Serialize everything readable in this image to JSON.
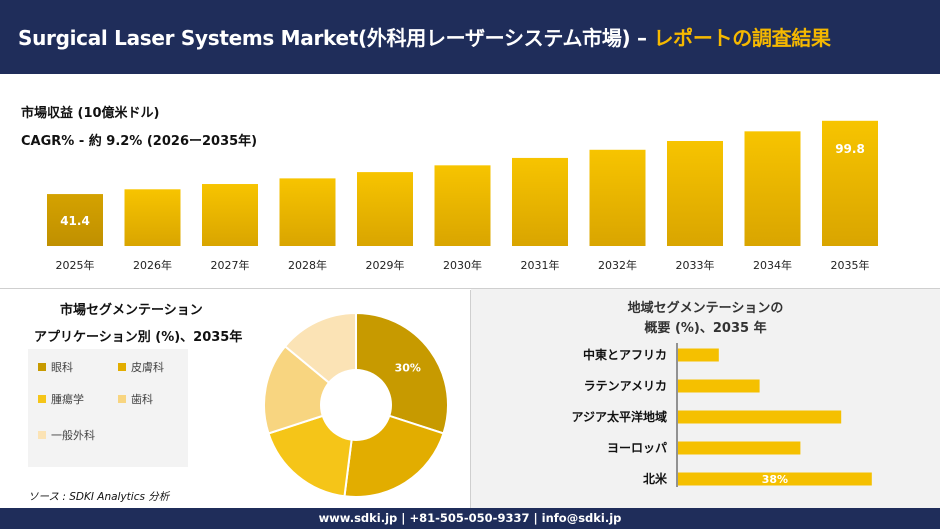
{
  "header": {
    "title_main": "Surgical Laser Systems Market(外科用レーザーシステム市場) –",
    "title_accent": "レポートの調査結果"
  },
  "top": {
    "label_revenue": "市場収益 (10億米ドル)",
    "label_cagr": "CAGR% - 約 9.2% (2026ー2035年)"
  },
  "segmentation": {
    "title_line1": "市場セグメンテーション",
    "title_line2": "アプリケーション別 (%)、2035年"
  },
  "region": {
    "title_line1": "地域セグメンテーションの",
    "title_line2": "概要 (%)、2035 年"
  },
  "source": "ソース : SDKI Analytics 分析",
  "footer": "www.sdki.jp | +81-505-050-9337 | info@sdki.jp",
  "colors": {
    "header_bg": "#1f2d5a",
    "accent": "#f5b800",
    "bar_gold": "#f5c000",
    "bar_dark": "#d4a000"
  },
  "chart_data": [
    {
      "type": "bar",
      "categories": [
        "2025年",
        "2026年",
        "2027年",
        "2028年",
        "2029年",
        "2030年",
        "2031年",
        "2032年",
        "2033年",
        "2034年",
        "2035年"
      ],
      "values": [
        41.4,
        45.2,
        49.4,
        53.9,
        58.9,
        64.3,
        70.2,
        76.7,
        83.7,
        91.4,
        99.8
      ],
      "data_labels": {
        "0": "41.4",
        "10": "99.8"
      },
      "ylim": [
        0,
        110
      ]
    },
    {
      "type": "pie",
      "categories": [
        "眼科",
        "皮膚科",
        "腫瘍学",
        "歯科",
        "一般外科"
      ],
      "values": [
        30,
        22,
        18,
        16,
        14
      ],
      "colors": [
        "#c79a00",
        "#e2ad00",
        "#f5c518",
        "#f8d580",
        "#fbe3b5"
      ],
      "data_labels": {
        "0": "30%"
      }
    },
    {
      "type": "bar",
      "orientation": "horizontal",
      "categories": [
        "中東とアフリカ",
        "ラテンアメリカ",
        "アジア太平洋地域",
        "ヨーロッパ",
        "北米"
      ],
      "values": [
        8,
        16,
        32,
        24,
        38
      ],
      "data_labels": {
        "4": "38%"
      },
      "xlim": [
        0,
        40
      ]
    }
  ]
}
